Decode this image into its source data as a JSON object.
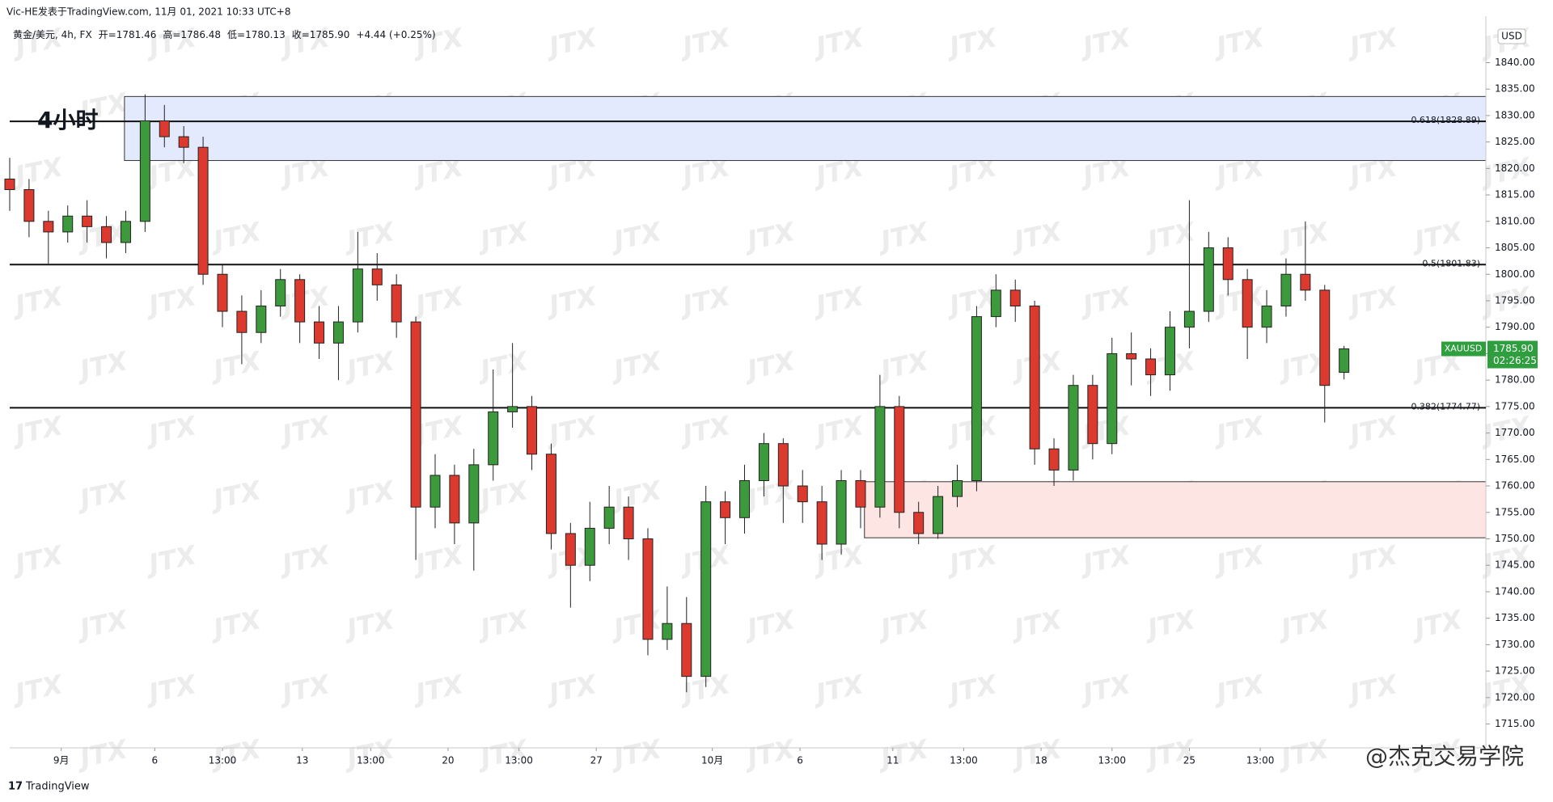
{
  "page_header": {
    "source": "Vic-HE发表于TradingView.com,  11月 01, 2021 10:33 UTC+8",
    "symbol": "黄金/美元, 4h, FX",
    "ohlc": [
      "开=1781.46",
      "高=1786.48",
      "低=1780.13",
      "收=1785.90"
    ],
    "change": "+4.44 (+0.25%)"
  },
  "chart_data": {
    "type": "candlestick",
    "annotation": "4小时",
    "currency": "USD",
    "watermark": "JTX",
    "credit": "@杰克交易学院",
    "brand": "TradingView",
    "up_color": "#3c9a3c",
    "down_color": "#dc3a2f",
    "x": [
      0,
      3,
      6,
      9,
      12,
      15,
      18,
      21,
      24,
      27,
      30,
      33,
      36,
      39,
      42,
      45,
      48,
      51,
      54,
      57,
      60,
      63,
      66,
      69,
      72,
      75,
      78,
      81,
      84,
      87,
      90,
      93,
      96,
      99,
      102,
      105,
      108,
      111,
      114,
      117,
      120,
      123,
      126,
      129,
      132,
      135,
      138,
      141,
      144,
      147,
      150,
      153,
      156,
      159,
      162,
      165,
      168,
      171,
      174,
      177,
      180,
      183,
      186,
      189,
      192,
      195,
      198,
      201,
      204,
      207
    ],
    "open": [
      1818,
      1816,
      1810,
      1808,
      1811,
      1809,
      1806,
      1810,
      1829,
      1826,
      1824,
      1800,
      1793,
      1789,
      1794,
      1799,
      1791,
      1787,
      1791,
      1801,
      1798,
      1791,
      1756,
      1762,
      1753,
      1764,
      1774,
      1775,
      1766,
      1751,
      1745,
      1752,
      1756,
      1750,
      1731,
      1734,
      1724,
      1757,
      1754,
      1761,
      1768,
      1760,
      1757,
      1749,
      1761,
      1756,
      1775,
      1755,
      1751,
      1758,
      1761,
      1792,
      1797,
      1794,
      1767,
      1763,
      1779,
      1768,
      1785,
      1784,
      1781,
      1790,
      1793,
      1805,
      1799,
      1790,
      1794,
      1800,
      1797,
      1781.46
    ],
    "high": [
      1822,
      1818,
      1812,
      1813,
      1814,
      1811,
      1812,
      1834,
      1832,
      1828,
      1826,
      1802,
      1796,
      1797,
      1801,
      1800,
      1794,
      1794,
      1808,
      1804,
      1800,
      1792,
      1766,
      1764,
      1767,
      1782,
      1787,
      1777,
      1768,
      1753,
      1757,
      1760,
      1758,
      1752,
      1741,
      1739,
      1760,
      1759,
      1764,
      1770,
      1769,
      1763,
      1760,
      1763,
      1763,
      1781,
      1777,
      1757,
      1760,
      1764,
      1794,
      1800,
      1799,
      1795,
      1769,
      1781,
      1781,
      1788,
      1789,
      1786,
      1793,
      1814,
      1808,
      1807,
      1801,
      1797,
      1803,
      1810,
      1798,
      1786.48
    ],
    "low": [
      1812,
      1807,
      1802,
      1806,
      1806,
      1803,
      1804,
      1808,
      1824,
      1821,
      1798,
      1790,
      1783,
      1787,
      1792,
      1787,
      1784,
      1780,
      1789,
      1795,
      1788,
      1746,
      1752,
      1749,
      1744,
      1761,
      1771,
      1763,
      1748,
      1737,
      1742,
      1749,
      1746,
      1728,
      1729,
      1721,
      1722,
      1749,
      1751,
      1758,
      1753,
      1753,
      1746,
      1747,
      1752,
      1754,
      1752,
      1749,
      1750,
      1756,
      1759,
      1790,
      1791,
      1764,
      1760,
      1761,
      1765,
      1766,
      1779,
      1777,
      1778,
      1786,
      1791,
      1796,
      1784,
      1787,
      1792,
      1795,
      1772,
      1780.13
    ],
    "close": [
      1816,
      1810,
      1808,
      1811,
      1809,
      1806,
      1810,
      1829,
      1826,
      1824,
      1800,
      1793,
      1789,
      1794,
      1799,
      1791,
      1787,
      1791,
      1801,
      1798,
      1791,
      1756,
      1762,
      1753,
      1764,
      1774,
      1775,
      1766,
      1751,
      1745,
      1752,
      1756,
      1750,
      1731,
      1734,
      1724,
      1757,
      1754,
      1761,
      1768,
      1760,
      1757,
      1749,
      1761,
      1756,
      1775,
      1755,
      1751,
      1758,
      1761,
      1792,
      1797,
      1794,
      1767,
      1763,
      1779,
      1768,
      1785,
      1784,
      1781,
      1790,
      1793,
      1805,
      1799,
      1790,
      1794,
      1800,
      1797,
      1779,
      1785.9
    ],
    "xlim": [
      0,
      229
    ],
    "xticks": [
      {
        "value": 8,
        "label": "9月"
      },
      {
        "value": 22.5,
        "label": "6"
      },
      {
        "value": 33,
        "label": "13:00"
      },
      {
        "value": 45.4,
        "label": "13"
      },
      {
        "value": 56,
        "label": "13:00"
      },
      {
        "value": 68,
        "label": "20"
      },
      {
        "value": 79,
        "label": "13:00"
      },
      {
        "value": 91,
        "label": "27"
      },
      {
        "value": 109,
        "label": "10月"
      },
      {
        "value": 122.6,
        "label": "6"
      },
      {
        "value": 137,
        "label": "11"
      },
      {
        "value": 148,
        "label": "13:00"
      },
      {
        "value": 160,
        "label": "18"
      },
      {
        "value": 171,
        "label": "13:00"
      },
      {
        "value": 183,
        "label": "25"
      },
      {
        "value": 194,
        "label": "13:00"
      }
    ],
    "ylim": [
      1710.5,
      1847.1
    ],
    "yticks": [
      {
        "value": 1715,
        "label": "1715.00"
      },
      {
        "value": 1720,
        "label": "1720.00"
      },
      {
        "value": 1725,
        "label": "1725.00"
      },
      {
        "value": 1730,
        "label": "1730.00"
      },
      {
        "value": 1735,
        "label": "1735.00"
      },
      {
        "value": 1740,
        "label": "1740.00"
      },
      {
        "value": 1745,
        "label": "1745.00"
      },
      {
        "value": 1750,
        "label": "1750.00"
      },
      {
        "value": 1755,
        "label": "1755.00"
      },
      {
        "value": 1760,
        "label": "1760.00"
      },
      {
        "value": 1765,
        "label": "1765.00"
      },
      {
        "value": 1770,
        "label": "1770.00"
      },
      {
        "value": 1775,
        "label": "1775.00"
      },
      {
        "value": 1780,
        "label": "1780.00"
      },
      {
        "value": 1785,
        "label": "1785.00"
      },
      {
        "value": 1790,
        "label": "1790.00"
      },
      {
        "value": 1795,
        "label": "1795.00"
      },
      {
        "value": 1800,
        "label": "1800.00"
      },
      {
        "value": 1805,
        "label": "1805.00"
      },
      {
        "value": 1810,
        "label": "1810.00"
      },
      {
        "value": 1815,
        "label": "1815.00"
      },
      {
        "value": 1820,
        "label": "1820.00"
      },
      {
        "value": 1825,
        "label": "1825.00"
      },
      {
        "value": 1830,
        "label": "1830.00"
      },
      {
        "value": 1835,
        "label": "1835.00"
      },
      {
        "value": 1840,
        "label": "1840.00"
      }
    ],
    "levels": [
      {
        "value": 1828.89,
        "label": "0.618(1828.89)"
      },
      {
        "value": 1801.83,
        "label": "0.5(1801.83)"
      },
      {
        "value": 1774.77,
        "label": "0.382(1774.77)"
      }
    ],
    "zones": [
      {
        "x0": 17.8,
        "top": 1833.6,
        "bottom": 1821.5,
        "color": "#e4eafd"
      },
      {
        "x0": 132.6,
        "top": 1760.8,
        "bottom": 1750.2,
        "color": "#fce5e3"
      }
    ],
    "last_price": {
      "symbol": "XAUUSD",
      "value": 1785.9,
      "label": "1785.90",
      "countdown": "02:26:25",
      "color": "#2e9e3e"
    }
  }
}
